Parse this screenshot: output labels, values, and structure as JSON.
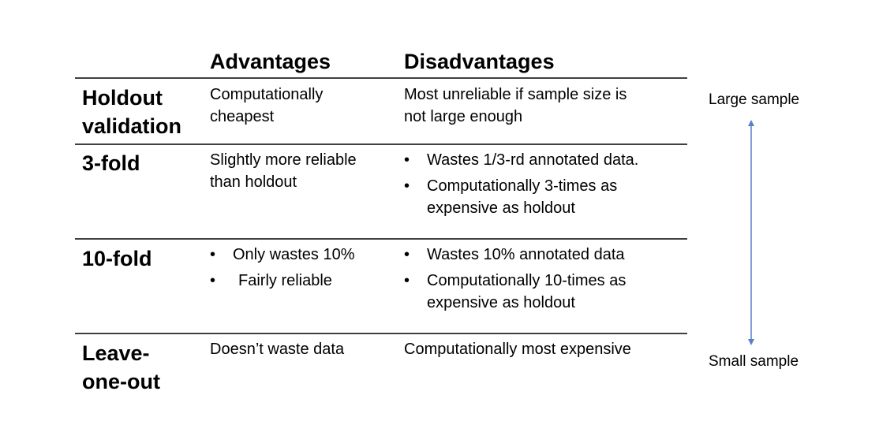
{
  "table": {
    "headers": [
      "Advantages",
      "Disadvantages"
    ],
    "rows": [
      {
        "label": "Holdout validation",
        "label_lines": [
          "Holdout",
          "validation"
        ],
        "advantages": {
          "text_lines": [
            "Computationally",
            "cheapest"
          ]
        },
        "disadvantages": {
          "text_lines": [
            "Most unreliable if sample size is",
            "not large enough"
          ]
        }
      },
      {
        "label": "3-fold",
        "advantages": {
          "text_lines": [
            "Slightly more reliable",
            "than holdout"
          ]
        },
        "disadvantages": {
          "bullets": [
            [
              "Wastes 1/3-rd annotated data."
            ],
            [
              "Computationally 3-times as",
              "expensive as holdout"
            ]
          ]
        }
      },
      {
        "label": "10-fold",
        "advantages": {
          "bullets": [
            [
              "Only wastes 10%"
            ],
            [
              "Fairly reliable"
            ]
          ]
        },
        "disadvantages": {
          "bullets": [
            [
              "Wastes 10% annotated data"
            ],
            [
              "Computationally 10-times as",
              "expensive as holdout"
            ]
          ]
        }
      },
      {
        "label": "Leave-one-out",
        "label_lines": [
          "Leave-",
          "one-out"
        ],
        "advantages": {
          "text_lines": [
            "Doesn’t waste data"
          ]
        },
        "disadvantages": {
          "text_lines": [
            "Computationally most expensive"
          ]
        }
      }
    ]
  },
  "scale": {
    "top_label": "Large sample",
    "bottom_label": "Small sample",
    "arrow_color": "#5b7fc7"
  },
  "colors": {
    "text": "#000000",
    "rule": "#404040",
    "background": "#ffffff"
  }
}
